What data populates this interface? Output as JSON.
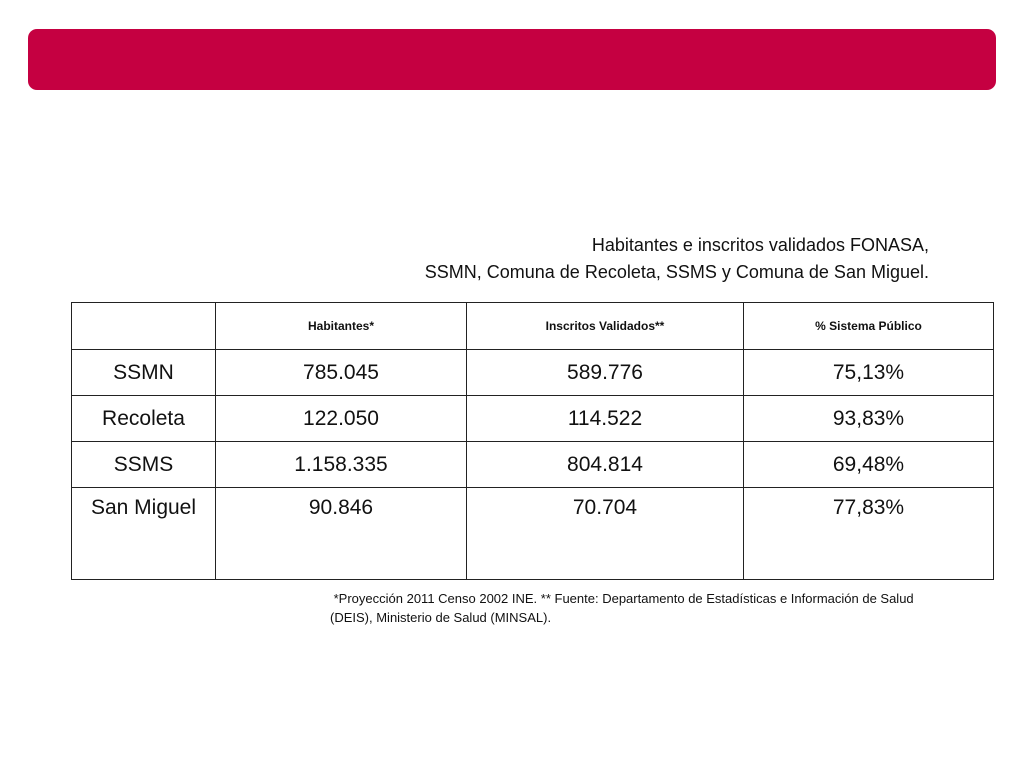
{
  "colors": {
    "header_bar": "#c50041"
  },
  "caption": {
    "line1": "Habitantes e inscritos validados FONASA,",
    "line2": "SSMN, Comuna de Recoleta, SSMS y Comuna de San Miguel."
  },
  "table": {
    "headers": [
      "",
      "Habitantes*",
      "Inscritos Validados**",
      "% Sistema Público"
    ],
    "rows": [
      [
        "SSMN",
        "785.045",
        "589.776",
        "75,13%"
      ],
      [
        "Recoleta",
        "122.050",
        "114.522",
        "93,83%"
      ],
      [
        "SSMS",
        "1.158.335",
        "804.814",
        "69,48%"
      ],
      [
        "San Miguel",
        "90.846",
        "70.704",
        "77,83%"
      ]
    ]
  },
  "footnote": {
    "line1": " *Proyección 2011 Censo 2002 INE. ** Fuente: Departamento de Estadísticas e Información de Salud",
    "line2": "(DEIS), Ministerio de Salud (MINSAL)."
  }
}
